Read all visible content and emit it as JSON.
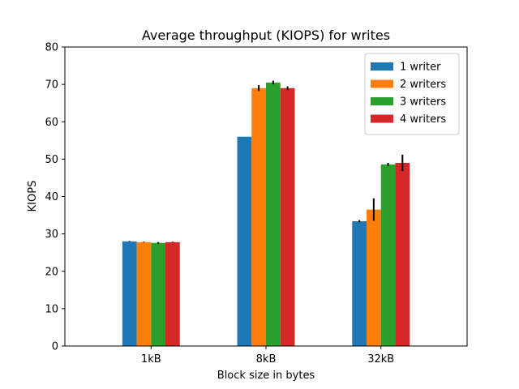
{
  "chart_data": {
    "type": "bar",
    "title": "Average throughput (KIOPS) for writes",
    "xlabel": "Block size in bytes",
    "ylabel": "KIOPS",
    "categories": [
      "1kB",
      "8kB",
      "32kB"
    ],
    "ylim": [
      0,
      80
    ],
    "yticks": [
      0,
      10,
      20,
      30,
      40,
      50,
      60,
      70,
      80
    ],
    "legend_position": "top-right",
    "grid": false,
    "series": [
      {
        "name": "1 writer",
        "color": "#1f77b4",
        "values": [
          28.0,
          56.0,
          33.4
        ],
        "errors": [
          0.1,
          0.0,
          0.3
        ]
      },
      {
        "name": "2 writers",
        "color": "#ff7f0e",
        "values": [
          27.8,
          69.0,
          36.5
        ],
        "errors": [
          0.1,
          0.8,
          3.0
        ]
      },
      {
        "name": "3 writers",
        "color": "#2ca02c",
        "values": [
          27.6,
          70.5,
          48.6
        ],
        "errors": [
          0.2,
          0.5,
          0.4
        ]
      },
      {
        "name": "4 writers",
        "color": "#d62728",
        "values": [
          27.8,
          69.0,
          49.0
        ],
        "errors": [
          0.1,
          0.5,
          2.2
        ]
      }
    ]
  }
}
